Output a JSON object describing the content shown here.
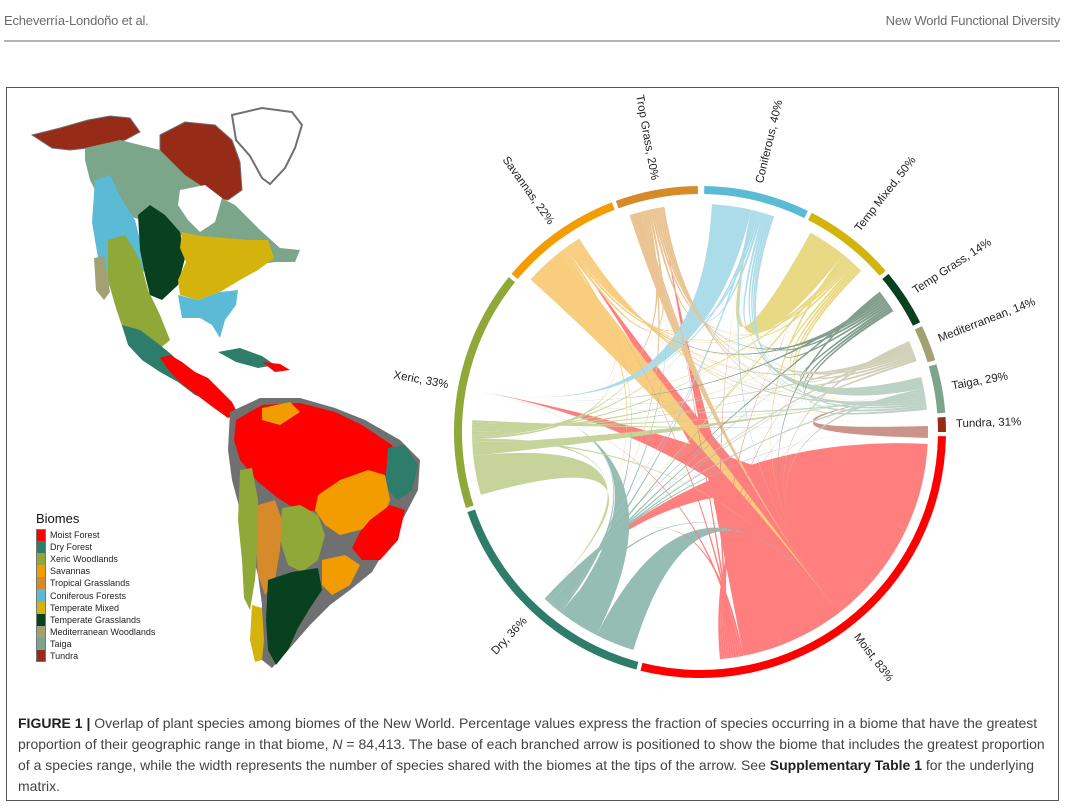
{
  "running_head": {
    "left": "Echeverría-Londoño et al.",
    "right": "New World Functional Diversity"
  },
  "figure": {
    "label": "FIGURE 1 |",
    "caption_parts": [
      "Overlap of plant species among biomes of the New World. Percentage values express the fraction of species occurring in a biome that have the greatest proportion of their geographic range in that biome, ",
      "N",
      " = 84,413. The base of each branched arrow is positioned to show the biome that includes the greatest proportion of a species range, while the width represents the number of species shared with the biomes at the tips of the arrow. See ",
      "Supplementary Table 1",
      " for the underlying matrix."
    ]
  },
  "legend": {
    "title": "Biomes",
    "items": [
      {
        "label": "Moist Forest",
        "color": "#FF0000"
      },
      {
        "label": "Dry Forest",
        "color": "#2E7D6B"
      },
      {
        "label": "Xeric Woodlands",
        "color": "#8FA838"
      },
      {
        "label": "Savannas",
        "color": "#F39C00"
      },
      {
        "label": "Tropical Grasslands",
        "color": "#D68A2A"
      },
      {
        "label": "Coniferous Forests",
        "color": "#5BBAD5"
      },
      {
        "label": "Temperate Mixed",
        "color": "#D4B40C"
      },
      {
        "label": "Temperate Grasslands",
        "color": "#07411F"
      },
      {
        "label": "Mediterranean Woodlands",
        "color": "#A3A173"
      },
      {
        "label": "Taiga",
        "color": "#7BA68A"
      },
      {
        "label": "Tundra",
        "color": "#962C17"
      }
    ]
  },
  "chart_data": {
    "type": "chord",
    "title": "Overlap of plant species among biomes of the New World",
    "n_species": 84413,
    "sectors": [
      {
        "name": "Moist",
        "percent": 83,
        "label": "Moist, 83%",
        "color": "#FF0000",
        "start_deg": 91,
        "end_deg": 194
      },
      {
        "name": "Dry",
        "percent": 36,
        "label": "Dry, 36%",
        "color": "#2E7D6B",
        "start_deg": 195,
        "end_deg": 251
      },
      {
        "name": "Xeric",
        "percent": 33,
        "label": "Xeric, 33%",
        "color": "#8FA838",
        "start_deg": 252,
        "end_deg": 309
      },
      {
        "name": "Savannas",
        "percent": 22,
        "label": "Savannas, 22%",
        "color": "#F39C00",
        "start_deg": 310,
        "end_deg": 339
      },
      {
        "name": "Trop Grass",
        "percent": 20,
        "label": "Trop Grass, 20%",
        "color": "#D68A2A",
        "start_deg": 340,
        "end_deg": 359.5
      },
      {
        "name": "Coniferous",
        "percent": 40,
        "label": "Coniferous, 40%",
        "color": "#5BBAD5",
        "start_deg": 1,
        "end_deg": 26
      },
      {
        "name": "Temp Mixed",
        "percent": 50,
        "label": "Temp Mixed, 50%",
        "color": "#D4B40C",
        "start_deg": 27,
        "end_deg": 49
      },
      {
        "name": "Temp Grass",
        "percent": 14,
        "label": "Temp Grass, 14%",
        "color": "#07411F",
        "start_deg": 50,
        "end_deg": 63.5
      },
      {
        "name": "Mediterranean",
        "percent": 14,
        "label": "Mediterranean, 14%",
        "color": "#A3A173",
        "start_deg": 64.5,
        "end_deg": 73
      },
      {
        "name": "Taiga",
        "percent": 29,
        "label": "Taiga, 29%",
        "color": "#7BA68A",
        "start_deg": 74,
        "end_deg": 85.5
      },
      {
        "name": "Tundra",
        "percent": 31,
        "label": "Tundra, 31%",
        "color": "#962C17",
        "start_deg": 86.5,
        "end_deg": 90
      }
    ],
    "major_links": [
      {
        "from": "Moist",
        "to": "Dry",
        "weight": "large"
      },
      {
        "from": "Moist",
        "to": "Xeric",
        "weight": "large"
      },
      {
        "from": "Moist",
        "to": "Savannas",
        "weight": "large"
      },
      {
        "from": "Moist",
        "to": "Trop Grass",
        "weight": "medium"
      },
      {
        "from": "Dry",
        "to": "Moist",
        "weight": "medium"
      },
      {
        "from": "Dry",
        "to": "Xeric",
        "weight": "medium"
      },
      {
        "from": "Xeric",
        "to": "Dry",
        "weight": "medium"
      },
      {
        "from": "Xeric",
        "to": "Taiga",
        "weight": "small"
      },
      {
        "from": "Savannas",
        "to": "Moist",
        "weight": "medium"
      },
      {
        "from": "Trop Grass",
        "to": "Moist",
        "weight": "small"
      },
      {
        "from": "Coniferous",
        "to": "Xeric",
        "weight": "medium"
      },
      {
        "from": "Temp Mixed",
        "to": "Coniferous",
        "weight": "medium"
      },
      {
        "from": "Taiga",
        "to": "Coniferous",
        "weight": "small"
      },
      {
        "from": "Tundra",
        "to": "Taiga",
        "weight": "small"
      }
    ]
  }
}
